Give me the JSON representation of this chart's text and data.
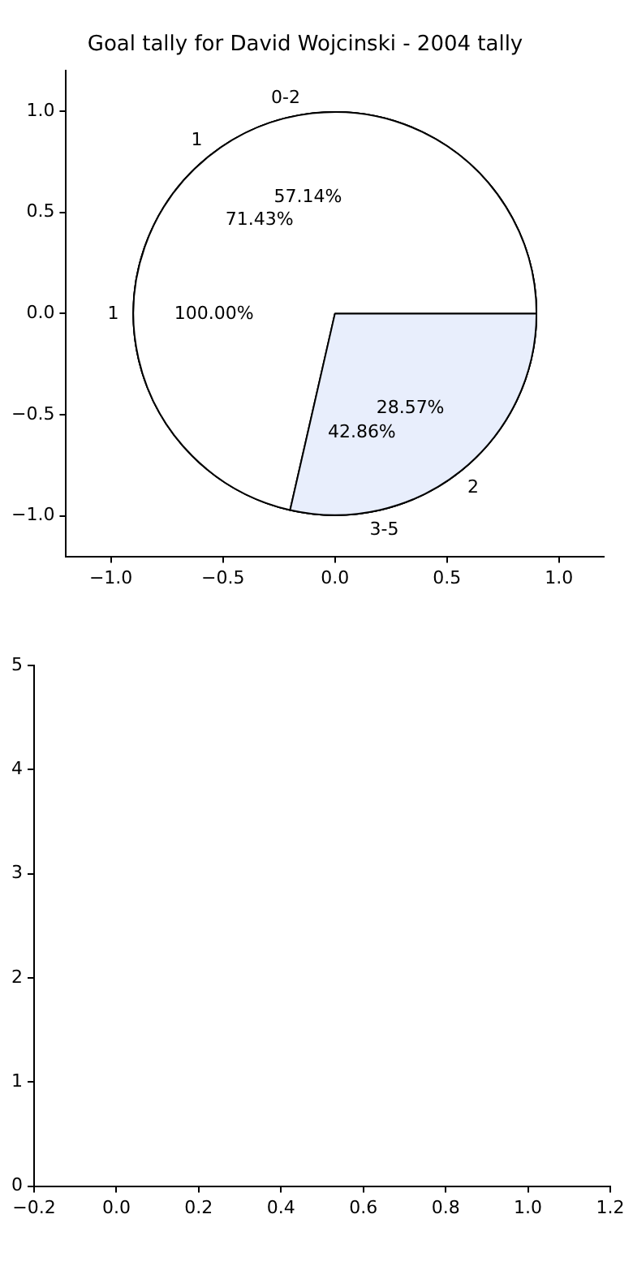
{
  "chart_data": [
    {
      "type": "scatter",
      "title": "Goal tally for David Wojcinski - 2004 tally",
      "xlim": [
        -1.2,
        1.2
      ],
      "xticks": [
        {
          "value": -1,
          "label": "−1.0"
        },
        {
          "value": -0.5,
          "label": "−0.5"
        },
        {
          "value": 0,
          "label": "0.0"
        },
        {
          "value": 0.5,
          "label": "0.5"
        },
        {
          "value": 1,
          "label": "1.0"
        }
      ],
      "ylim": [
        -1.2,
        1.2
      ],
      "yticks": [
        {
          "value": -1,
          "label": "−1.0"
        },
        {
          "value": -0.5,
          "label": "−0.5"
        },
        {
          "value": 0,
          "label": "0.0"
        },
        {
          "value": 0.5,
          "label": "0.5"
        },
        {
          "value": 1,
          "label": "1.0"
        }
      ]
    },
    {
      "type": "pie",
      "categories": [
        "1"
      ],
      "values": [
        100
      ],
      "colors": [
        "#ffffff"
      ],
      "value_labels": [
        "100.00%"
      ]
    },
    {
      "type": "pie",
      "categories": [
        "0-2",
        "3-5"
      ],
      "values": [
        57.14,
        42.86
      ],
      "colors": [
        "#ffffff",
        "#ffffff"
      ],
      "value_labels": [
        "57.14%",
        "42.86%"
      ]
    },
    {
      "type": "pie",
      "categories": [
        "1",
        "2"
      ],
      "values": [
        71.43,
        28.57
      ],
      "colors": [
        "#ffffff",
        "#e8eefc"
      ],
      "value_labels": [
        "71.43%",
        "28.57%"
      ]
    },
    {
      "type": "scatter",
      "xlim": [
        -0.2,
        1.2
      ],
      "xticks": [
        {
          "value": -0.2,
          "label": "−0.2"
        },
        {
          "value": 0,
          "label": "0.0"
        },
        {
          "value": 0.2,
          "label": "0.2"
        },
        {
          "value": 0.4,
          "label": "0.4"
        },
        {
          "value": 0.6,
          "label": "0.6"
        },
        {
          "value": 0.8,
          "label": "0.8"
        },
        {
          "value": 1,
          "label": "1.0"
        },
        {
          "value": 1.2,
          "label": "1.2"
        }
      ],
      "ylim": [
        0,
        5
      ],
      "yticks": [
        0,
        1,
        2,
        3,
        4,
        5
      ]
    }
  ]
}
